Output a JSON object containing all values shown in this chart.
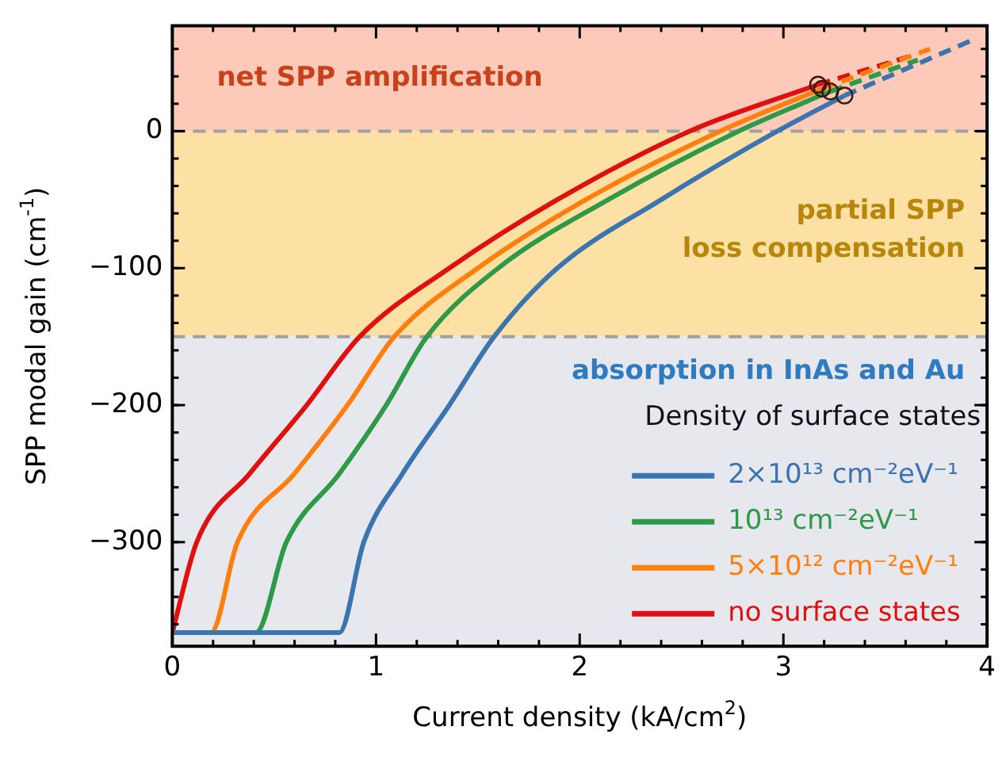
{
  "chart_data": {
    "type": "line",
    "xlabel": "Current density (kA/cm$^{2}$)",
    "ylabel": "SPP modal gain (cm$^{-1}$)",
    "xlim": [
      0,
      4
    ],
    "xticks": [
      0,
      1,
      2,
      3,
      4
    ],
    "ylim": [
      -376,
      77
    ],
    "yticks": [
      -300,
      -200,
      -100,
      0
    ],
    "legend": "bottom right",
    "legend_title": "Density of surface states",
    "marker": "none",
    "line_style": "solid",
    "grid": false,
    "series": [
      {
        "name": "2×10¹³ cm⁻²eV⁻¹",
        "color": "#3a75b0",
        "x": [
          0,
          0.82,
          0.94,
          1.13,
          1.36,
          1.58,
          1.89,
          2.4,
          2.97,
          3.3
        ],
        "values": [
          -366,
          -366,
          -300,
          -250,
          -200,
          -150,
          -100,
          -50,
          0,
          26
        ]
      },
      {
        "name": "10¹³ cm⁻²eV⁻¹",
        "color": "#2e9a48",
        "x": [
          0,
          0.41,
          0.56,
          0.82,
          1.05,
          1.25,
          1.6,
          2.14,
          2.78,
          3.23
        ],
        "values": [
          -366,
          -366,
          -300,
          -250,
          -200,
          -150,
          -100,
          -50,
          0,
          29
        ]
      },
      {
        "name": "5×10¹² cm⁻²eV⁻¹",
        "color": "#ff7f0e",
        "x": [
          0,
          0.19,
          0.32,
          0.6,
          0.86,
          1.09,
          1.5,
          2.03,
          2.69,
          3.19
        ],
        "values": [
          -366,
          -366,
          -300,
          -250,
          -200,
          -150,
          -100,
          -50,
          0,
          31
        ]
      },
      {
        "name": "no surface states",
        "color": "#e0100e",
        "x": [
          0,
          0.12,
          0.38,
          0.66,
          0.92,
          1.36,
          1.89,
          2.54,
          3.17
        ],
        "values": [
          -366,
          -300,
          -250,
          -200,
          -150,
          -100,
          -50,
          0,
          34
        ]
      },
      {
        "color": "#3a75b0",
        "line_style": "dashed",
        "x": [
          3.3,
          3.92
        ],
        "values": [
          26,
          66
        ]
      },
      {
        "color": "#2e9a48",
        "line_style": "dashed",
        "x": [
          3.23,
          3.66
        ],
        "values": [
          29,
          52
        ]
      },
      {
        "color": "#ff7f0e",
        "line_style": "dashed",
        "x": [
          3.19,
          3.72
        ],
        "values": [
          31,
          60
        ]
      },
      {
        "color": "#e0100e",
        "line_style": "dashed",
        "x": [
          3.17,
          3.63
        ],
        "values": [
          34,
          55
        ]
      },
      {
        "type": "scatter",
        "marker": "circle",
        "color": "#3a1a10",
        "x": [
          3.17,
          3.19,
          3.23,
          3.3
        ],
        "values": [
          34,
          31,
          29,
          26
        ]
      }
    ],
    "bands": [
      {
        "axis": "y",
        "from": 0,
        "to": 77,
        "label": "net SPP amplification",
        "color": "#fdc9b8"
      },
      {
        "axis": "y",
        "from": -150,
        "to": 0,
        "label": "partial SPP\nloss compensation",
        "color": "#fde0a4"
      },
      {
        "axis": "y",
        "from": -376,
        "to": -150,
        "label": "absorption in InAs and Au",
        "color": "#e7e7ee"
      }
    ],
    "ref_lines": [
      {
        "axis": "y",
        "value": 0,
        "color": "#a0a0a0",
        "line_style": "dashed"
      },
      {
        "axis": "y",
        "value": -150,
        "color": "#a0a0a0",
        "line_style": "dashed"
      }
    ]
  }
}
